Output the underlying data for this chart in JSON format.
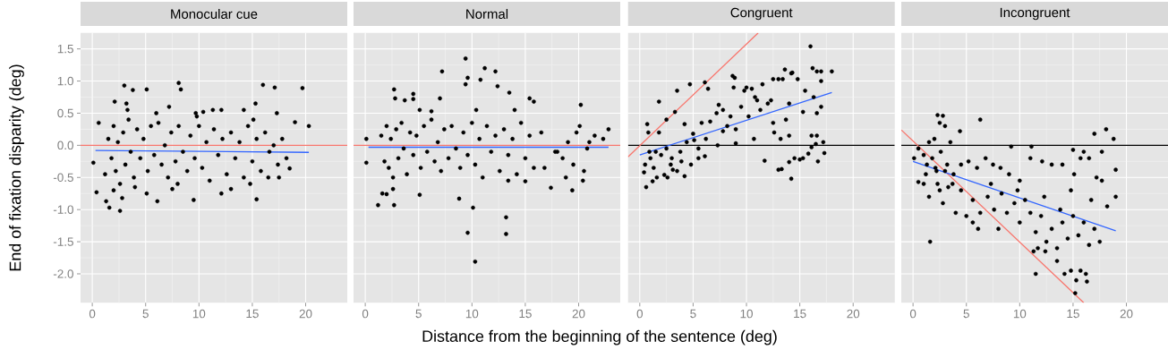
{
  "chart_data": [
    {
      "type": "scatter",
      "title": "Monocular cue",
      "ylabel": "End of fixation disparity (deg)",
      "xlabel": "Distance from the beginning of the sentence (deg)",
      "xlim": [
        -1.1,
        23.9
      ],
      "ylim": [
        -2.45,
        1.75
      ],
      "xticks": [
        0,
        5,
        10,
        15,
        20
      ],
      "yticks": [
        {
          "value": -2,
          "label": "-2.0"
        },
        {
          "value": -1.5,
          "label": "-1.5"
        },
        {
          "value": -1,
          "label": "-1.0"
        },
        {
          "value": -0.5,
          "label": "-0.5"
        },
        {
          "value": 0,
          "label": "0.0"
        },
        {
          "value": 0.5,
          "label": "0.5"
        },
        {
          "value": 1,
          "label": "1.0"
        },
        {
          "value": 1.5,
          "label": "1.5"
        }
      ],
      "grid": true,
      "series": [
        {
          "color": "#000000",
          "x": [
            3,
            3.8,
            5.1,
            8.1,
            8.3,
            16,
            17.1,
            19.7,
            2.1,
            3.2,
            7.2,
            15.3,
            0.6,
            20.3,
            19,
            0.1,
            0.4,
            1.3,
            1.6,
            2.6,
            2.8,
            5.1,
            6.1,
            9.5,
            12.1,
            15.4,
            13,
            7.5,
            16.5,
            18.5,
            17.5,
            10.4,
            11.3,
            12.1,
            14.2,
            17.3,
            9.7,
            1.5,
            1.8,
            2.0,
            2.2,
            2.4,
            2.6,
            2.9,
            3.1,
            3.4,
            3.6,
            3.9,
            4.2,
            4.5,
            4.8,
            5.2,
            5.5,
            5.8,
            6.2,
            6.5,
            6.8,
            7.1,
            7.4,
            7.8,
            8.1,
            8.5,
            8.9,
            9.2,
            9.6,
            10.0,
            10.3,
            10.7,
            11.0,
            11.4,
            11.8,
            12.2,
            12.6,
            13.0,
            13.4,
            13.8,
            14.2,
            14.6,
            15.0,
            15.4,
            15.8,
            16.2,
            16.6,
            17.0,
            17.4,
            17.8,
            18.2,
            1.2,
            2.0,
            3.3,
            4.0,
            6.0,
            8.0,
            9.8,
            14.8,
            15.1
          ],
          "values": [
            0.93,
            0.86,
            0.87,
            0.97,
            0.87,
            0.94,
            0.9,
            0.89,
            0.68,
            0.65,
            0.6,
            0.65,
            0.35,
            0.3,
            0.36,
            -0.27,
            -0.73,
            -0.87,
            -0.97,
            -1.02,
            -0.82,
            -0.75,
            -0.87,
            -0.85,
            -0.75,
            -0.84,
            -0.68,
            -0.68,
            -0.5,
            -0.36,
            -0.5,
            0.52,
            0.55,
            0.55,
            0.55,
            0.5,
            0.5,
            0.1,
            -0.2,
            0.3,
            -0.4,
            0.05,
            -0.6,
            0.2,
            -0.3,
            0.4,
            -0.1,
            -0.5,
            0.25,
            -0.2,
            0.1,
            -0.4,
            0.3,
            -0.15,
            0.35,
            -0.3,
            0.0,
            -0.5,
            0.2,
            -0.25,
            0.3,
            -0.1,
            -0.4,
            0.15,
            -0.2,
            0.3,
            -0.35,
            0.05,
            -0.55,
            0.25,
            -0.15,
            0.1,
            -0.45,
            0.2,
            -0.2,
            0.05,
            -0.5,
            0.3,
            -0.25,
            0.1,
            -0.4,
            0.2,
            -0.1,
            0.0,
            -0.3,
            0.1,
            -0.2,
            -0.45,
            -0.7,
            0.55,
            -0.65,
            0.5,
            -0.6,
            0.45,
            -0.6,
            0.4
          ]
        },
        {
          "type": "line",
          "color": "#3366ff",
          "x": [
            0.3,
            20.3
          ],
          "values": [
            -0.08,
            -0.11
          ]
        }
      ],
      "ref_lines": [
        {
          "axis": "y",
          "value": 0,
          "color": "#f8766d"
        }
      ]
    },
    {
      "type": "scatter",
      "title": "Normal",
      "xlim": [
        -1.1,
        23.9
      ],
      "ylim": [
        -2.45,
        1.75
      ],
      "xticks": [
        0,
        5,
        10,
        15,
        20
      ],
      "yticks": [
        {
          "value": -2,
          "label": null
        },
        {
          "value": -1.5,
          "label": null
        },
        {
          "value": -1,
          "label": null
        },
        {
          "value": -0.5,
          "label": null
        },
        {
          "value": 0,
          "label": null
        },
        {
          "value": 0.5,
          "label": null
        },
        {
          "value": 1,
          "label": null
        },
        {
          "value": 1.5,
          "label": null
        }
      ],
      "tick_labels": "x",
      "grid": true,
      "series": [
        {
          "color": "#000000",
          "x": [
            9.4,
            7.2,
            11.2,
            12.2,
            9.6,
            10.8,
            9.4,
            12.4,
            2.7,
            13.5,
            4.5,
            2.8,
            3.7,
            4.5,
            7,
            15.4,
            15.8,
            20.2,
            5.1,
            6.2,
            10.4,
            14,
            1.2,
            2.7,
            1.6,
            2.0,
            2.6,
            5.1,
            8.8,
            10.1,
            13.2,
            9.6,
            13.2,
            10.3,
            17.4,
            19.4,
            18.8,
            20.4,
            22.8,
            22.3,
            21.5,
            0.1,
            0.1,
            13.4,
            15,
            1.5,
            1.8,
            2.0,
            2.2,
            2.4,
            2.6,
            2.9,
            3.1,
            3.4,
            3.6,
            3.9,
            4.2,
            4.5,
            4.8,
            5.2,
            5.5,
            5.8,
            6.2,
            6.5,
            6.8,
            7.1,
            7.4,
            7.8,
            8.1,
            8.5,
            8.9,
            9.2,
            9.6,
            10.0,
            10.3,
            10.7,
            11.0,
            11.4,
            11.8,
            12.2,
            12.6,
            13.0,
            13.4,
            13.8,
            14.2,
            14.6,
            15.0,
            15.4,
            15.8,
            18,
            18.5,
            19,
            19.5,
            19.8,
            20.1,
            20.5,
            20.8,
            21,
            17.8,
            16.8,
            16.5
          ],
          "values": [
            1.35,
            1.15,
            1.2,
            1.15,
            1.05,
            1.02,
            0.95,
            0.92,
            0.87,
            0.82,
            0.8,
            0.73,
            0.7,
            0.72,
            0.73,
            0.73,
            0.68,
            0.63,
            0.55,
            0.53,
            0.55,
            0.55,
            -0.93,
            -0.93,
            -0.75,
            -0.76,
            -0.68,
            -0.77,
            -0.83,
            -0.97,
            -1.12,
            -1.36,
            -1.38,
            -1.81,
            -0.66,
            -0.7,
            -0.5,
            -0.55,
            0.25,
            0.1,
            0.15,
            -0.27,
            0.1,
            -0.55,
            -0.56,
            0.15,
            -0.25,
            0.3,
            -0.35,
            0.1,
            -0.5,
            0.25,
            -0.2,
            0.35,
            -0.05,
            -0.45,
            0.2,
            -0.15,
            0.15,
            -0.35,
            0.3,
            -0.1,
            0.4,
            -0.25,
            0.05,
            -0.4,
            0.25,
            -0.2,
            0.3,
            -0.05,
            -0.35,
            0.2,
            -0.15,
            0.35,
            -0.3,
            0.1,
            -0.5,
            0.3,
            -0.1,
            0.15,
            -0.4,
            0.25,
            -0.15,
            0.1,
            -0.45,
            0.35,
            -0.2,
            0.15,
            -0.35,
            -0.1,
            -0.2,
            0.05,
            -0.3,
            0.2,
            0.3,
            -0.4,
            -0.05,
            0.05,
            -0.1,
            -0.35,
            0.2
          ]
        },
        {
          "type": "line",
          "color": "#3366ff",
          "x": [
            0.3,
            22.8
          ],
          "values": [
            -0.03,
            -0.03
          ]
        }
      ],
      "ref_lines": [
        {
          "axis": "y",
          "value": 0,
          "color": "#f8766d"
        }
      ]
    },
    {
      "type": "scatter",
      "title": "Congruent",
      "xlim": [
        -1.1,
        23.9
      ],
      "ylim": [
        -2.45,
        1.75
      ],
      "xticks": [
        0,
        5,
        10,
        15,
        20
      ],
      "yticks": [
        {
          "value": -2,
          "label": null
        },
        {
          "value": -1.5,
          "label": null
        },
        {
          "value": -1,
          "label": null
        },
        {
          "value": -0.5,
          "label": null
        },
        {
          "value": 0,
          "label": null
        },
        {
          "value": 0.5,
          "label": null
        },
        {
          "value": 1,
          "label": null
        },
        {
          "value": 1.5,
          "label": null
        }
      ],
      "tick_labels": "x",
      "grid": true,
      "series": [
        {
          "color": "#000000",
          "x": [
            16,
            16.2,
            16.6,
            17,
            18,
            13.6,
            14.2,
            14.3,
            12.5,
            13,
            13.4,
            14.8,
            17,
            8.7,
            8.9,
            6.1,
            4.7,
            3.5,
            6.4,
            8.8,
            10,
            10.5,
            11.5,
            1.8,
            7.4,
            9.8,
            10.8,
            11,
            12.3,
            15.5,
            16.3,
            17,
            14,
            15.3,
            16.6,
            13.7,
            3.3,
            2.5,
            0.7,
            1.8,
            0.8,
            4.2,
            5,
            5.8,
            6.6,
            7.2,
            7.8,
            8.5,
            9.0,
            9.5,
            10.2,
            10.7,
            11.3,
            12.0,
            12.6,
            13.2,
            14.0,
            12.5,
            9,
            7.3,
            6.2,
            5.5,
            4.4,
            3.8,
            3,
            2.5,
            2,
            1.5,
            1,
            0.5,
            0.4,
            0.6,
            1.2,
            1.6,
            2.3,
            2.6,
            3.1,
            3.5,
            4.2,
            4.8,
            5.5,
            6.1,
            3.9,
            2.9,
            1.3,
            0.9,
            11.7,
            13,
            13.3,
            14,
            14.2,
            14.5,
            15,
            15.3,
            15.8,
            16.1,
            16.5,
            16.7,
            17.2,
            17.3,
            16.1,
            16.6,
            5.1,
            7.8,
            8.2
          ],
          "values": [
            1.54,
            1.2,
            1.15,
            1.15,
            1.15,
            1.18,
            1.12,
            1.13,
            1.03,
            1.03,
            1.03,
            1.03,
            1.0,
            1.08,
            1.05,
            0.98,
            0.95,
            0.85,
            0.88,
            0.9,
            0.9,
            0.88,
            0.95,
            0.68,
            0.63,
            0.85,
            0.75,
            0.7,
            0.7,
            0.85,
            0.75,
            0.6,
            0.65,
            0.52,
            0.5,
            0.4,
            0.52,
            0.4,
            0.33,
            0.2,
            0.2,
            0.33,
            0.18,
            0.35,
            0.37,
            0.5,
            0.55,
            0.45,
            0.25,
            0.6,
            0.45,
            0.1,
            0.55,
            0.65,
            0.2,
            0.1,
            0.15,
            0.35,
            0.03,
            0.0,
            0.1,
            -0.05,
            0.05,
            -0.1,
            -0.2,
            -0.05,
            -0.15,
            -0.1,
            -0.2,
            -0.3,
            -0.42,
            -0.65,
            -0.56,
            -0.5,
            -0.46,
            -0.5,
            -0.38,
            -0.4,
            -0.48,
            -0.3,
            -0.2,
            -0.17,
            -0.25,
            -0.3,
            -0.35,
            -0.1,
            -0.24,
            -0.38,
            -0.37,
            -0.26,
            -0.52,
            -0.2,
            -0.22,
            -0.2,
            -0.13,
            -0.03,
            0.02,
            -0.25,
            0.05,
            -0.12,
            0.15,
            0.15,
            0.08,
            0.22,
            0.3
          ]
        },
        {
          "type": "line",
          "color": "#f8766d",
          "x": [
            -1.1,
            11.1
          ],
          "values": [
            -0.18,
            1.75
          ]
        },
        {
          "type": "line",
          "color": "#3366ff",
          "x": [
            0,
            18
          ],
          "values": [
            -0.15,
            0.82
          ]
        }
      ],
      "ref_lines": [
        {
          "axis": "y",
          "value": 0,
          "color": "#000000"
        }
      ]
    },
    {
      "type": "scatter",
      "title": "Incongruent",
      "xlim": [
        -1.1,
        23.9
      ],
      "ylim": [
        -2.45,
        1.75
      ],
      "xticks": [
        0,
        5,
        10,
        15,
        20
      ],
      "yticks": [
        {
          "value": -2,
          "label": null
        },
        {
          "value": -1.5,
          "label": null
        },
        {
          "value": -1,
          "label": null
        },
        {
          "value": -0.5,
          "label": null
        },
        {
          "value": 0,
          "label": null
        },
        {
          "value": 0.5,
          "label": null
        },
        {
          "value": 1,
          "label": null
        },
        {
          "value": 1.5,
          "label": null
        }
      ],
      "tick_labels": "x",
      "grid": true,
      "series": [
        {
          "color": "#000000",
          "x": [
            2.3,
            2.8,
            6.3,
            2.5,
            3,
            4.4,
            18.1,
            17,
            18.8,
            2,
            3.5,
            1.5,
            9.2,
            11.1,
            15,
            16,
            17.7,
            0.1,
            0.5,
            1,
            1.3,
            1.8,
            2.2,
            2.6,
            3.2,
            3.8,
            4.5,
            5.2,
            6,
            6.8,
            7.5,
            8.2,
            9,
            10,
            11,
            12.1,
            13,
            14,
            15.1,
            15.7,
            16.5,
            17.2,
            17.7,
            19,
            19,
            18.2,
            0.5,
            1,
            1.5,
            2.3,
            2.8,
            3.3,
            4,
            4.5,
            5,
            5.6,
            6.3,
            7,
            7.6,
            8.3,
            8.8,
            9.5,
            10,
            10.5,
            11,
            11.5,
            12,
            12.5,
            13,
            13.5,
            14,
            14.5,
            15,
            15.5,
            16,
            16.5,
            17,
            17.5,
            11.3,
            11.7,
            12.4,
            13.5,
            14.2,
            14.8,
            15.3,
            15.7,
            16.2,
            16.3,
            15.2,
            11.5,
            1.6,
            8,
            6.1,
            5.6,
            9.8,
            7.3,
            3,
            2.1,
            12.3,
            14.8,
            16.7,
            13.8,
            1.2,
            2.5,
            3.7
          ],
          "values": [
            0.47,
            0.46,
            0.4,
            0.35,
            0.3,
            0.22,
            0.25,
            0.18,
            0.1,
            0.1,
            0.05,
            0.05,
            -0.02,
            -0.02,
            -0.07,
            -0.1,
            -0.1,
            -0.2,
            -0.05,
            -0.15,
            -0.3,
            -0.2,
            -0.4,
            -0.1,
            -0.3,
            -0.45,
            -0.3,
            -0.25,
            -0.35,
            -0.2,
            -0.3,
            -0.35,
            -0.45,
            -0.55,
            -0.2,
            -0.25,
            -0.3,
            -0.3,
            -0.45,
            -0.2,
            -0.2,
            -0.5,
            -0.55,
            -0.38,
            -0.8,
            -0.95,
            -0.57,
            -0.6,
            -0.8,
            -0.6,
            -0.9,
            -0.65,
            -1.05,
            -0.7,
            -1.1,
            -0.85,
            -1.05,
            -0.8,
            -1.0,
            -0.75,
            -1.05,
            -0.9,
            -1.2,
            -0.85,
            -1.05,
            -1.35,
            -1.1,
            -1.5,
            -1.3,
            -1.6,
            -1.2,
            -1.45,
            -1.1,
            -1.4,
            -1.2,
            -1.55,
            -1.3,
            -1.5,
            -1.65,
            -1.6,
            -1.65,
            -1.8,
            -2.0,
            -1.95,
            -2.1,
            -1.95,
            -2.0,
            -2.12,
            -2.3,
            -2.0,
            -1.5,
            -1.3,
            -1.3,
            -1.2,
            -0.7,
            -0.6,
            -0.4,
            -0.35,
            -0.8,
            -0.7,
            -0.85,
            -1.0,
            -0.45,
            -0.7,
            -0.6
          ]
        },
        {
          "type": "line",
          "color": "#f8766d",
          "x": [
            -1.1,
            16
          ],
          "values": [
            0.24,
            -2.45
          ]
        },
        {
          "type": "line",
          "color": "#3366ff",
          "x": [
            0,
            19
          ],
          "values": [
            -0.25,
            -1.33
          ]
        }
      ],
      "ref_lines": [
        {
          "axis": "y",
          "value": 0,
          "color": "#000000"
        }
      ]
    }
  ]
}
